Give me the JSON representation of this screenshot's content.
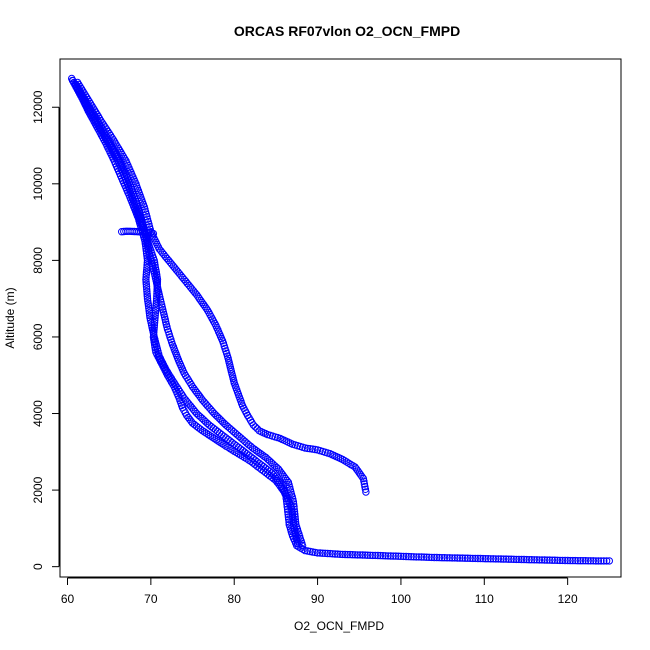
{
  "chart_data": {
    "type": "scatter",
    "title": "ORCAS RF07vlon O2_OCN_FMPD",
    "xlabel": "O2_OCN_FMPD",
    "ylabel": "Altitude (m)",
    "xlim": [
      59.1,
      126.4
    ],
    "ylim": [
      -270,
      13260
    ],
    "x_ticks": [
      60,
      70,
      80,
      90,
      100,
      110,
      120
    ],
    "y_ticks": [
      0,
      2000,
      4000,
      6000,
      8000,
      10000,
      12000
    ],
    "grid": false,
    "legend": "none",
    "marker": "open-circle",
    "color": "#0000ff",
    "series": [
      {
        "x": [
          60.5,
          61.5,
          62.5,
          63.5,
          64.5,
          65.5,
          66.5,
          67.5,
          68.5,
          69.3,
          69.6,
          69.4,
          69.6,
          69.9,
          70.4,
          71.0,
          71.8,
          72.8,
          74.0,
          75.5,
          77.0,
          78.5,
          80.0,
          81.5,
          83.0,
          84.5,
          85.6,
          86.2,
          86.4,
          86.6,
          87.0,
          87.5,
          88.5,
          90.0,
          93.0,
          96.0,
          100.0,
          104.0,
          108.0,
          112.0,
          116.0,
          120.0,
          124.0,
          125.0
        ],
        "y": [
          12750,
          12350,
          11900,
          11500,
          11100,
          10650,
          10150,
          9650,
          9100,
          8500,
          8000,
          7500,
          7000,
          6500,
          6000,
          5500,
          5150,
          4800,
          4400,
          4000,
          3700,
          3450,
          3200,
          2950,
          2700,
          2450,
          2150,
          1850,
          1500,
          1100,
          800,
          550,
          420,
          360,
          320,
          300,
          270,
          240,
          220,
          200,
          180,
          160,
          150,
          150
        ]
      },
      {
        "x": [
          60.6,
          61.6,
          62.8,
          64.0,
          65.2,
          66.3,
          67.2,
          68.0,
          68.8,
          69.6,
          70.4,
          70.8,
          70.7,
          70.5,
          70.3,
          70.6,
          71.3,
          72.0,
          72.8,
          73.4,
          73.8,
          74.3,
          75.0,
          76.2,
          77.6,
          79.0,
          80.5,
          82.0,
          83.5,
          85.0,
          86.2,
          86.9,
          87.2,
          87.6
        ],
        "y": [
          12700,
          12300,
          11850,
          11400,
          10950,
          10500,
          10000,
          9500,
          9000,
          8500,
          8000,
          7500,
          7000,
          6500,
          6000,
          5600,
          5300,
          5000,
          4700,
          4400,
          4150,
          3950,
          3750,
          3550,
          3350,
          3150,
          2950,
          2750,
          2500,
          2250,
          1900,
          1500,
          1000,
          600
        ]
      },
      {
        "x": [
          61.0,
          62.3,
          63.7,
          65.0,
          66.3,
          67.3,
          68.1,
          68.8,
          69.4,
          69.9,
          70.5,
          71.0,
          71.5,
          72.0,
          72.6,
          73.3,
          74.0,
          75.0,
          76.2,
          77.6,
          79.0,
          80.6,
          82.2,
          83.8,
          85.3,
          86.5,
          87.1,
          87.4,
          88.2
        ],
        "y": [
          12600,
          12100,
          11600,
          11100,
          10600,
          10100,
          9600,
          9100,
          8600,
          8100,
          7600,
          7100,
          6650,
          6200,
          5800,
          5400,
          5050,
          4700,
          4350,
          4000,
          3700,
          3400,
          3100,
          2850,
          2550,
          2200,
          1700,
          1100,
          550
        ]
      },
      {
        "x": [
          61.2,
          62.6,
          64.0,
          65.5,
          67.0,
          68.2,
          69.2,
          70.0,
          71.0,
          72.5,
          74.0,
          75.5,
          76.8,
          77.8,
          78.6,
          79.2,
          79.6,
          80.0,
          80.5,
          81.0,
          81.6,
          82.3,
          83.0,
          84.0,
          85.5,
          87.0,
          88.5,
          90.0,
          91.5,
          93.0,
          94.5,
          95.5,
          95.8
        ],
        "y": [
          12650,
          12150,
          11650,
          11150,
          10600,
          10000,
          9400,
          8750,
          8300,
          7900,
          7500,
          7100,
          6700,
          6300,
          5900,
          5500,
          5150,
          4800,
          4500,
          4200,
          3950,
          3700,
          3550,
          3450,
          3350,
          3200,
          3100,
          3050,
          2950,
          2800,
          2600,
          2300,
          1950
        ]
      },
      {
        "x": [
          66.5,
          67.0,
          67.5,
          68.0,
          68.5,
          69.0,
          69.5,
          70.0,
          70.3
        ],
        "y": [
          8750,
          8760,
          8760,
          8755,
          8750,
          8745,
          8740,
          8730,
          8700
        ]
      }
    ]
  }
}
